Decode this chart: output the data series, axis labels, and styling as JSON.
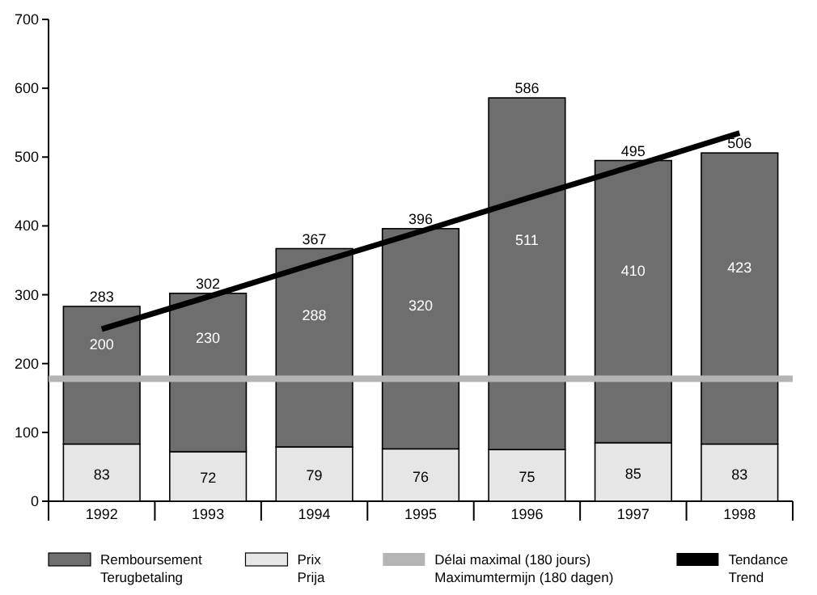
{
  "chart_data": {
    "type": "bar",
    "stacked": true,
    "categories": [
      "1992",
      "1993",
      "1994",
      "1995",
      "1996",
      "1997",
      "1998"
    ],
    "series": [
      {
        "name": "Prix\nPrija",
        "color": "#e6e6e6",
        "values": [
          83,
          72,
          79,
          76,
          75,
          85,
          83
        ],
        "value_labels": [
          "83",
          "72",
          "79",
          "76",
          "75",
          "85",
          "83"
        ]
      },
      {
        "name": "Remboursement\nTerugbetaling",
        "color": "#6e6e6e",
        "values": [
          200,
          230,
          288,
          320,
          511,
          410,
          423
        ],
        "value_labels": [
          "200",
          "230",
          "288",
          "320",
          "511",
          "410",
          "423"
        ]
      },
      {
        "name": "Tendance\nTrend",
        "type": "line",
        "color": "#000000",
        "values": [
          250,
          297,
          345,
          392,
          440,
          487,
          535
        ]
      }
    ],
    "ref_lines": [
      {
        "axis": "y",
        "value": 178,
        "label": "Délai maximal (180 jours)\nMaximumtermijn (180 dagen)",
        "color": "#b4b4b4"
      }
    ],
    "totals": [
      "283",
      "302",
      "367",
      "396",
      "586",
      "495",
      "506"
    ],
    "ylim": [
      0,
      700
    ],
    "yticks": [
      0,
      100,
      200,
      300,
      400,
      500,
      600,
      700
    ],
    "grid": false,
    "legend": "bottom"
  }
}
